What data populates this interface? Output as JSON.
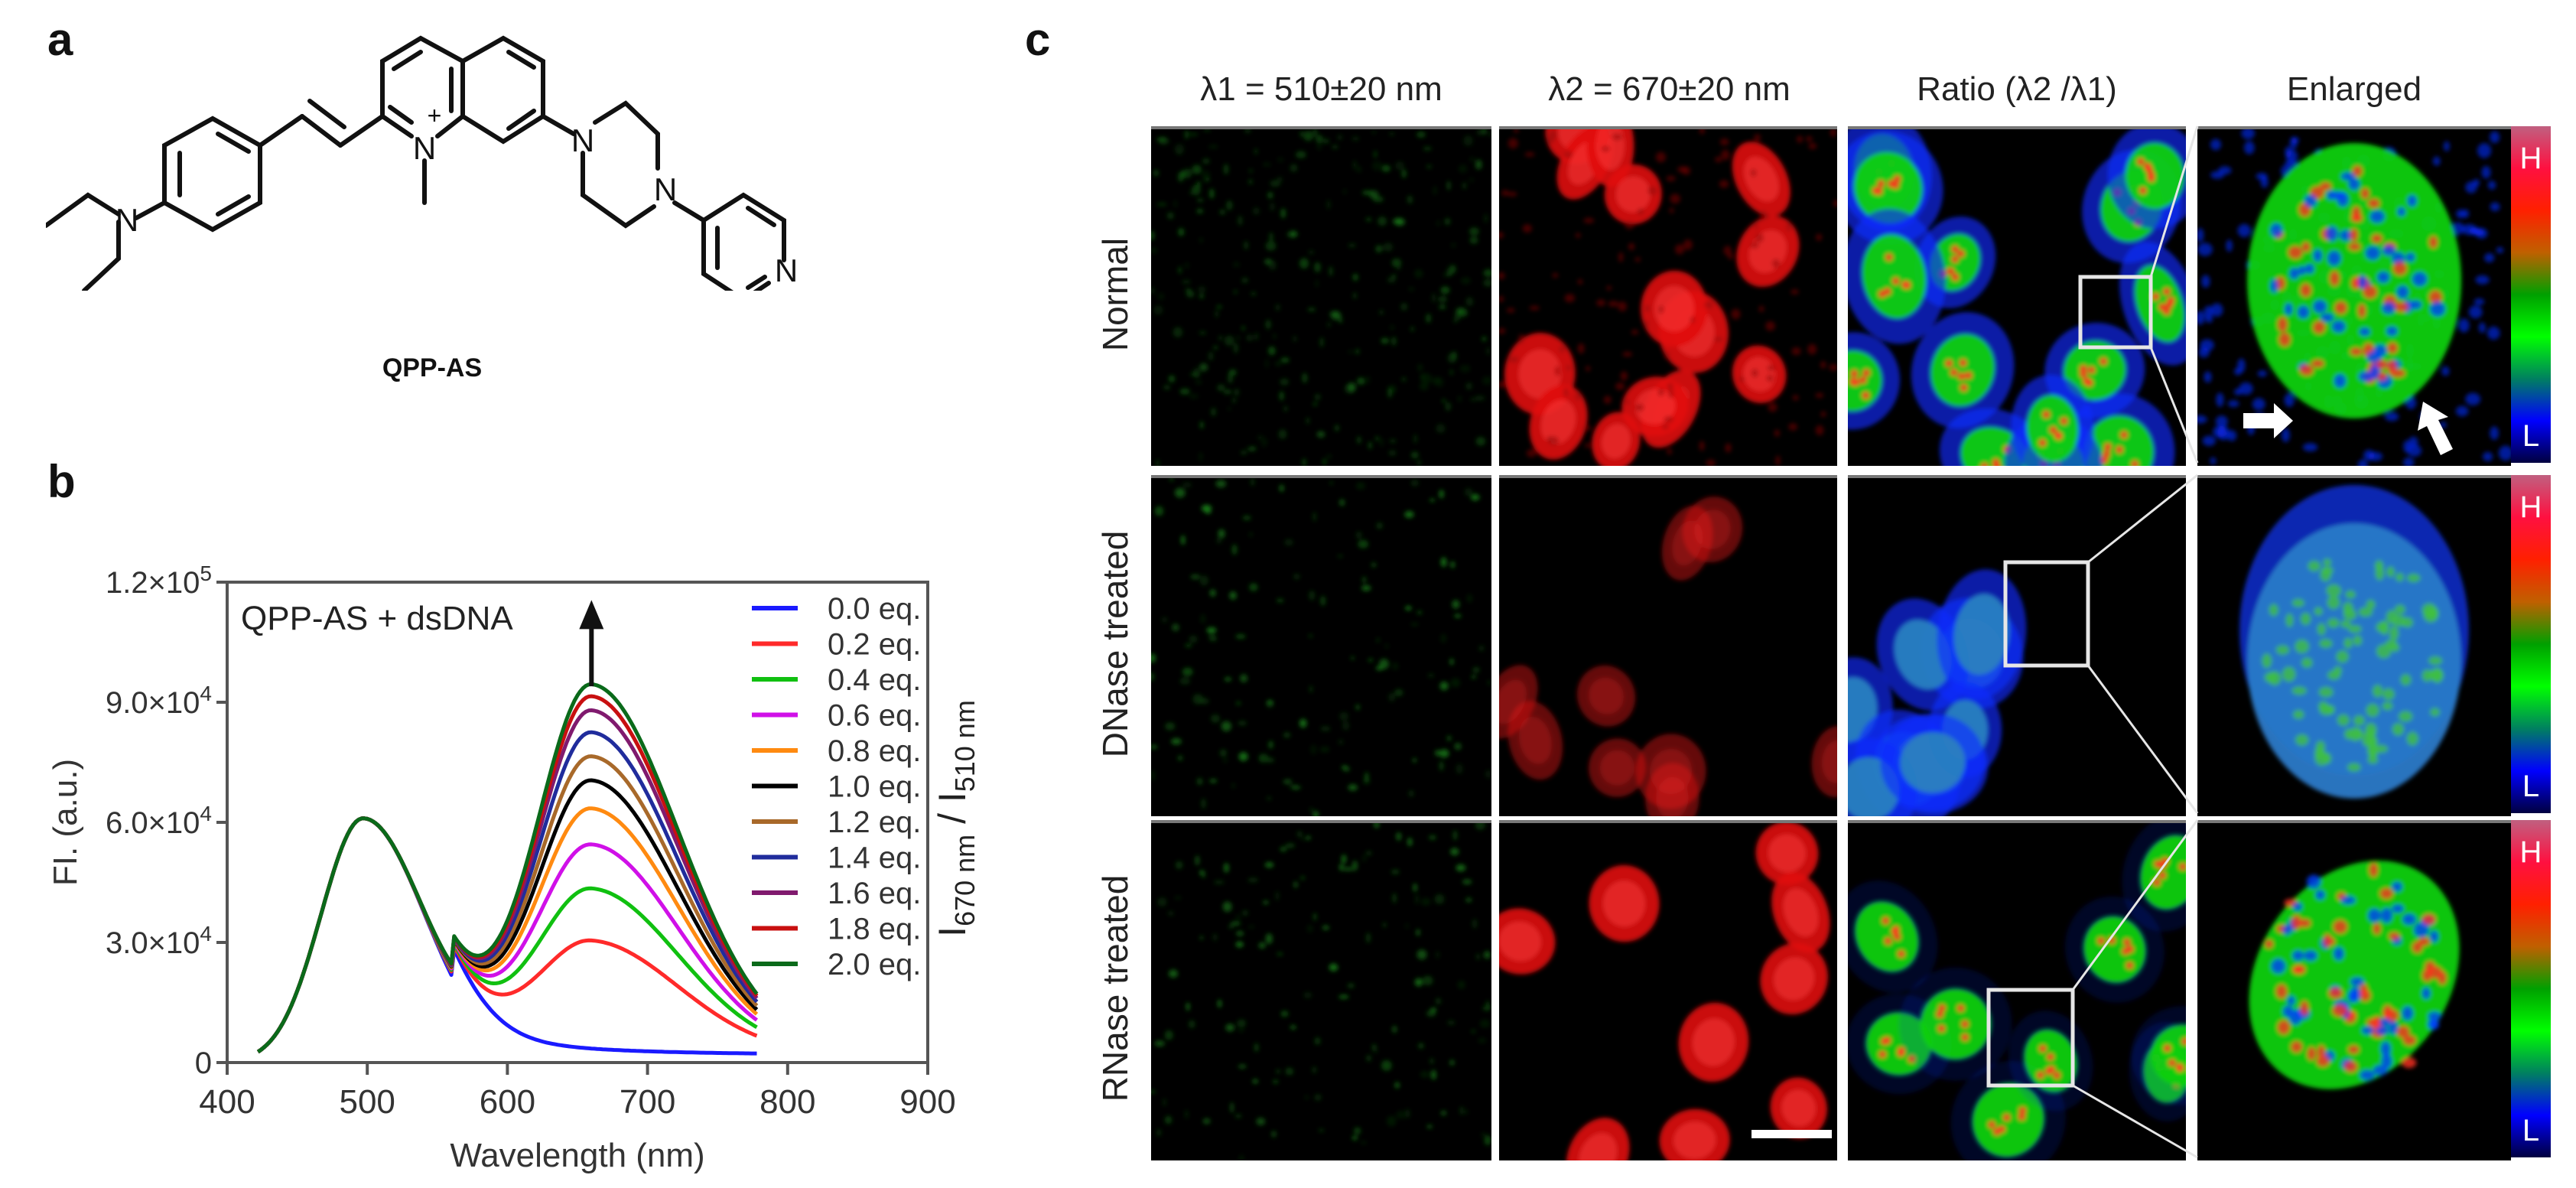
{
  "panels": {
    "a": {
      "letter": "a",
      "compound_name": "QPP-AS",
      "atom_labels": {
        "amine_N": "N",
        "quinolinium_N": "N",
        "charge": "+",
        "piperazine_N1": "N",
        "piperazine_N2": "N",
        "pyridine_N": "N"
      }
    },
    "b": {
      "letter": "b"
    },
    "c": {
      "letter": "c",
      "column_headers": [
        "λ1 = 510±20 nm",
        "λ2 = 670±20 nm",
        "Ratio (λ2 /λ1)",
        "Enlarged"
      ],
      "row_labels": [
        "Normal",
        "DNase treated",
        "RNase treated"
      ],
      "colorbar": {
        "high_label": "H",
        "low_label": "L",
        "gradient": [
          "#c06080",
          "#ff1040",
          "#ff2000",
          "#c06000",
          "#00a000",
          "#00ff00",
          "#008060",
          "#0000ff",
          "#000040"
        ]
      },
      "channel_colors": {
        "lambda1": "#1fa01f",
        "lambda2": "#e01010",
        "ratio_low": "#0a2cff",
        "ratio_mid": "#10d010",
        "ratio_high": "#ff3020"
      },
      "scale_bar": "white"
    }
  },
  "chart_data": {
    "type": "line",
    "title": "",
    "annotation": "QPP-AS + dsDNA",
    "xlabel": "Wavelength (nm)",
    "ylabel": "FI. (a.u.)",
    "y2label_main": "I",
    "y2label_sub1": "670 nm",
    "y2label_sep": " / I",
    "y2label_sub2": "510 nm",
    "xlim": [
      400,
      900
    ],
    "ylim": [
      0,
      120000
    ],
    "xticks": [
      "400",
      "500",
      "600",
      "700",
      "800",
      "900"
    ],
    "yticks": [
      {
        "value": 0,
        "mant": "0",
        "exp": ""
      },
      {
        "value": 30000,
        "mant": "3.0×10",
        "exp": "4"
      },
      {
        "value": 60000,
        "mant": "6.0×10",
        "exp": "4"
      },
      {
        "value": 90000,
        "mant": "9.0×10",
        "exp": "4"
      },
      {
        "value": 120000,
        "mant": "1.2×10",
        "exp": "5"
      }
    ],
    "grid": false,
    "legend_position": "upper right, inside",
    "x_range_measured": [
      422,
      778
    ],
    "peak1": {
      "wavelength": 497,
      "value": 61000,
      "width": 38
    },
    "peak2_wavelength": 660,
    "series": [
      {
        "name": "0.0 eq.",
        "color": "#1a1aff",
        "peak2": 0,
        "valley": 0
      },
      {
        "name": "0.2 eq.",
        "color": "#ff2a2a",
        "peak2": 27000,
        "valley": 16500
      },
      {
        "name": "0.4 eq.",
        "color": "#10c010",
        "peak2": 40000,
        "valley": 18000
      },
      {
        "name": "0.6 eq.",
        "color": "#d010e8",
        "peak2": 51000,
        "valley": 19000
      },
      {
        "name": "0.8 eq.",
        "color": "#ff8a10",
        "peak2": 60000,
        "valley": 20000
      },
      {
        "name": "1.0 eq.",
        "color": "#000000",
        "peak2": 67000,
        "valley": 21000
      },
      {
        "name": "1.2 eq.",
        "color": "#a8692a",
        "peak2": 73000,
        "valley": 21500
      },
      {
        "name": "1.4 eq.",
        "color": "#202c9c",
        "peak2": 79000,
        "valley": 22000
      },
      {
        "name": "1.6 eq.",
        "color": "#801a6e",
        "peak2": 84500,
        "valley": 22500
      },
      {
        "name": "1.8 eq.",
        "color": "#c81010",
        "peak2": 88000,
        "valley": 23000
      },
      {
        "name": "2.0 eq.",
        "color": "#0a6a1a",
        "peak2": 91000,
        "valley": 23500
      }
    ],
    "end_values_778nm": [
      2500,
      7000,
      9500,
      12000,
      14500,
      17500,
      19500,
      21000,
      22500,
      23500,
      25000
    ],
    "arrow": {
      "direction": "up",
      "x": 660,
      "y_from": 94000,
      "y_to": 114000
    }
  }
}
